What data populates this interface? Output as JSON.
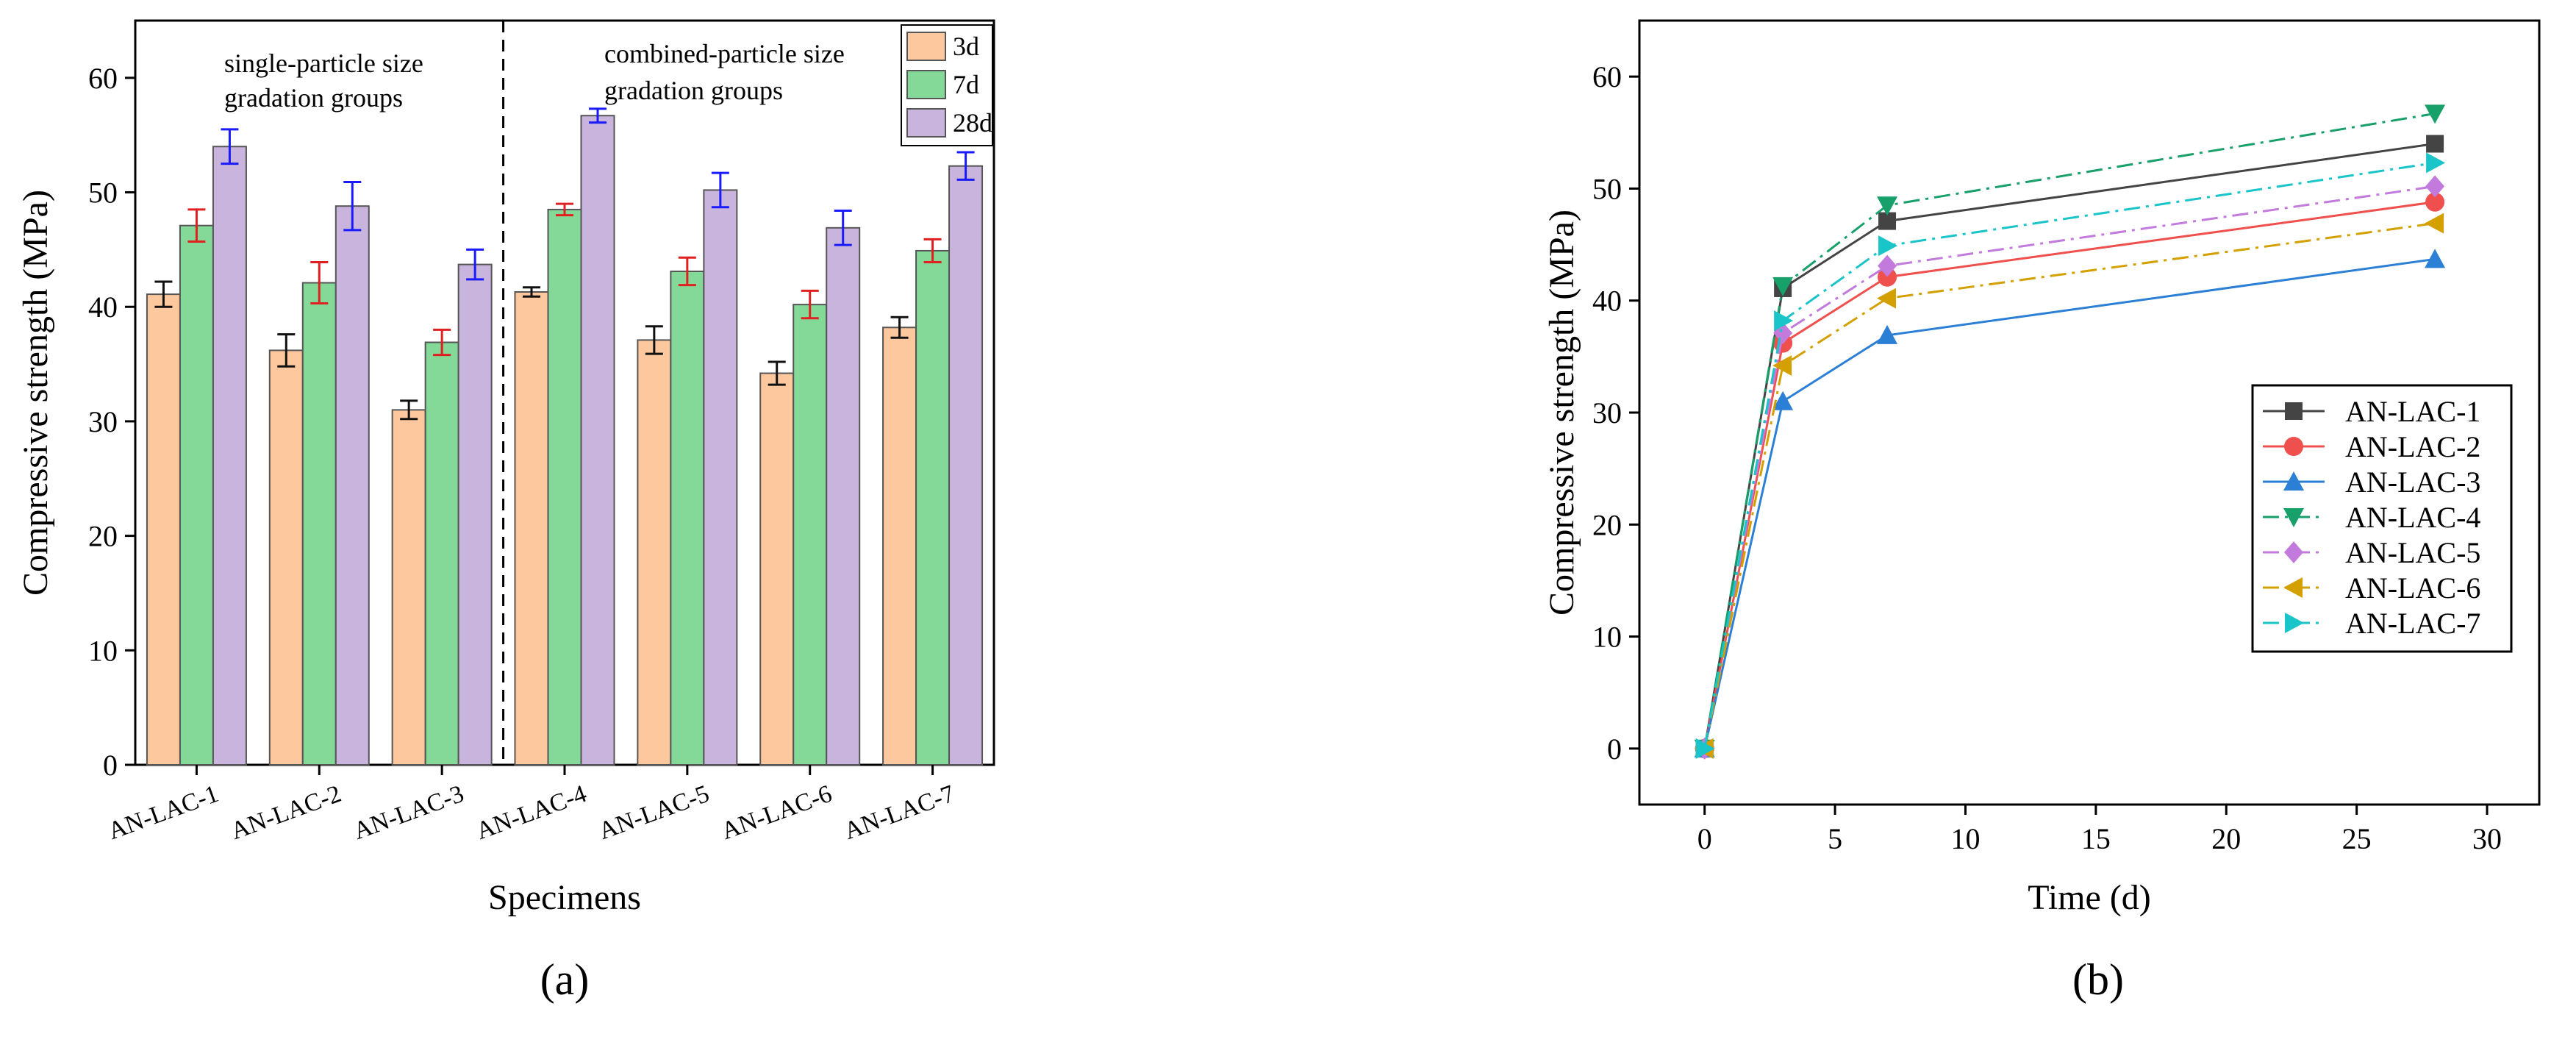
{
  "chart_data": [
    {
      "type": "bar",
      "panel_label": "a",
      "xlabel": "Specimens",
      "ylabel": "Compressive strength (MPa)",
      "ylim": [
        0,
        65
      ],
      "yticks": [
        0,
        10,
        20,
        30,
        40,
        50,
        60
      ],
      "categories": [
        "AN-LAC-1",
        "AN-LAC-2",
        "AN-LAC-3",
        "AN-LAC-4",
        "AN-LAC-5",
        "AN-LAC-6",
        "AN-LAC-7"
      ],
      "series": [
        {
          "name": "3d",
          "color": "#fdc89d",
          "errcolor": "#111111",
          "values": [
            41.1,
            36.2,
            31.0,
            41.3,
            37.1,
            34.2,
            38.2
          ],
          "errors": [
            1.1,
            1.4,
            0.8,
            0.4,
            1.2,
            1.0,
            0.9
          ]
        },
        {
          "name": "7d",
          "color": "#84d898",
          "errcolor": "#e02020",
          "values": [
            47.1,
            42.1,
            36.9,
            48.5,
            43.1,
            40.2,
            44.9
          ],
          "errors": [
            1.4,
            1.8,
            1.1,
            0.5,
            1.2,
            1.2,
            1.0
          ]
        },
        {
          "name": "28d",
          "color": "#c9b4dd",
          "errcolor": "#1a1aff",
          "values": [
            54.0,
            48.8,
            43.7,
            56.7,
            50.2,
            46.9,
            52.3
          ],
          "errors": [
            1.5,
            2.1,
            1.3,
            0.6,
            1.5,
            1.5,
            1.2
          ]
        }
      ],
      "group_labels": {
        "left": [
          "single-particle size",
          "gradation groups"
        ],
        "right": [
          "combined-particle size",
          "gradation groups"
        ]
      },
      "legend_position": "top-right",
      "grid": false
    },
    {
      "type": "line",
      "panel_label": "b",
      "xlabel": "Time (d)",
      "ylabel": "Compressive strength (MPa)",
      "xlim": [
        -2.5,
        32
      ],
      "ylim": [
        -5,
        65
      ],
      "xticks": [
        0,
        5,
        10,
        15,
        20,
        25,
        30
      ],
      "yticks": [
        0,
        10,
        20,
        30,
        40,
        50,
        60
      ],
      "x": [
        0,
        3,
        7,
        28
      ],
      "series": [
        {
          "name": "AN-LAC-1",
          "color": "#444444",
          "marker": "square",
          "dash": "solid",
          "values": [
            0,
            41.1,
            47.1,
            54.0
          ]
        },
        {
          "name": "AN-LAC-2",
          "color": "#f0504d",
          "marker": "circle",
          "dash": "solid",
          "values": [
            0,
            36.2,
            42.1,
            48.8
          ]
        },
        {
          "name": "AN-LAC-3",
          "color": "#2b7fd4",
          "marker": "triangle-up",
          "dash": "solid",
          "values": [
            0,
            31.0,
            36.9,
            43.7
          ]
        },
        {
          "name": "AN-LAC-4",
          "color": "#17a06a",
          "marker": "triangle-down",
          "dash": "dashdot",
          "values": [
            0,
            41.3,
            48.5,
            56.7
          ]
        },
        {
          "name": "AN-LAC-5",
          "color": "#c27bdc",
          "marker": "diamond",
          "dash": "dashdot",
          "values": [
            0,
            37.1,
            43.1,
            50.2
          ]
        },
        {
          "name": "AN-LAC-6",
          "color": "#d4a000",
          "marker": "triangle-left",
          "dash": "dashdot",
          "values": [
            0,
            34.2,
            40.2,
            46.9
          ]
        },
        {
          "name": "AN-LAC-7",
          "color": "#1ac5c9",
          "marker": "triangle-right",
          "dash": "dashdot",
          "values": [
            0,
            38.2,
            44.9,
            52.3
          ]
        }
      ],
      "legend_position": "center-right",
      "grid": false
    }
  ],
  "captions": [
    "(a)",
    "(b)"
  ]
}
